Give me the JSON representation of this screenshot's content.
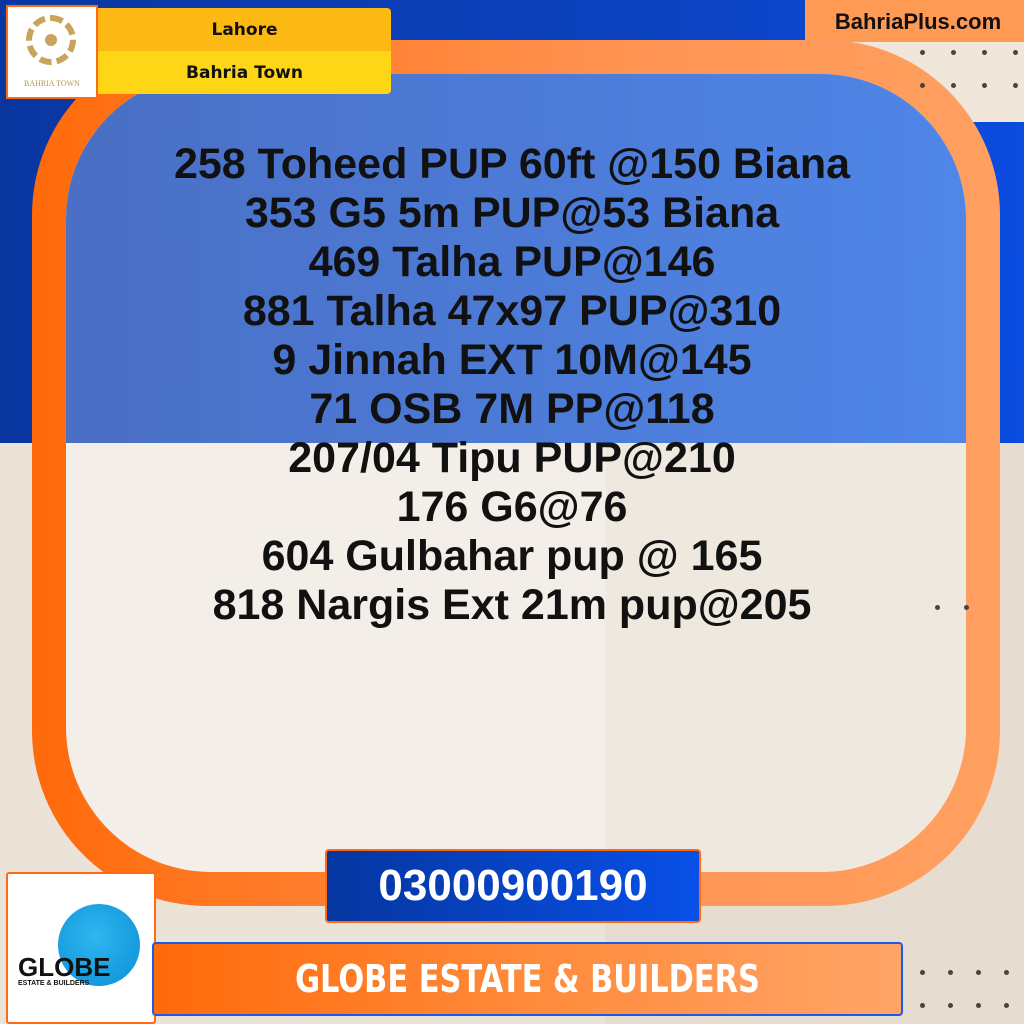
{
  "header": {
    "brand_logo_text": "BAHRIA TOWN",
    "city": "Lahore",
    "society": "Bahria Town",
    "website": "BahriaPlus.com"
  },
  "listings": [
    "258 Toheed PUP 60ft @150 Biana",
    "353 G5 5m PUP@53 Biana",
    "469 Talha PUP@146",
    "881 Talha 47x97 PUP@310",
    "9 Jinnah EXT 10M@145",
    "71 OSB 7M PP@118",
    "207/04 Tipu PUP@210",
    "176 G6@76",
    "604 Gulbahar pup @ 165",
    "818 Nargis Ext 21m pup@205"
  ],
  "contact": {
    "phone": "03000900190"
  },
  "agency": {
    "name": "GLOBE ESTATE & BUILDERS",
    "logo_text": "GLOBE",
    "logo_subtext": "ESTATE & BUILDERS"
  },
  "colors": {
    "blue": "#0a3aa8",
    "orange": "#ff6a0a",
    "yellow": "#fcb813",
    "beige": "#ebe3d8"
  }
}
